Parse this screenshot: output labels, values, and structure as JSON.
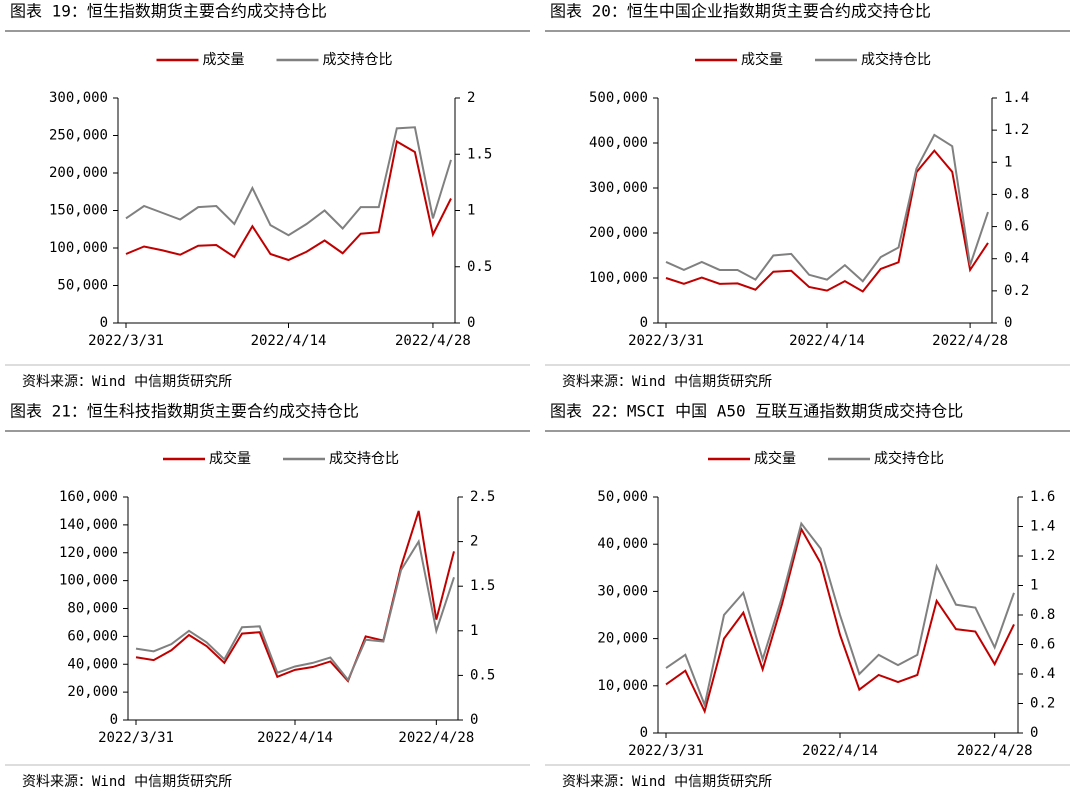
{
  "chart_data": [
    {
      "type": "line",
      "title": "图表 19：恒生指数期货主要合约成交持仓比",
      "source": "资料来源：Wind   中信期货研究所",
      "categories": [
        "2022/3/31",
        null,
        null,
        null,
        null,
        null,
        null,
        null,
        null,
        "2022/4/14",
        null,
        null,
        null,
        null,
        null,
        null,
        null,
        "2022/4/28",
        null
      ],
      "series": [
        {
          "name": "成交量",
          "color": "#c00000",
          "axis": "y",
          "values": [
            92000,
            102000,
            97000,
            91000,
            103000,
            104000,
            88000,
            129000,
            92000,
            84000,
            95000,
            110000,
            93000,
            119000,
            121000,
            242000,
            228000,
            118000,
            166000
          ]
        },
        {
          "name": "成交持仓比",
          "color": "#808080",
          "axis": "y2",
          "values": [
            0.93,
            1.04,
            0.98,
            0.92,
            1.03,
            1.04,
            0.88,
            1.2,
            0.87,
            0.78,
            0.88,
            1.0,
            0.84,
            1.03,
            1.03,
            1.73,
            1.74,
            0.93,
            1.45
          ]
        }
      ],
      "ylim": [
        0,
        300000
      ],
      "yticks": [
        0,
        {
          "value": 50000,
          "label": "50,000"
        },
        {
          "value": 100000,
          "label": "100,000"
        },
        {
          "value": 150000,
          "label": "150,000"
        },
        {
          "value": 200000,
          "label": "200,000"
        },
        {
          "value": 250000,
          "label": "250,000"
        },
        {
          "value": 300000,
          "label": "300,000"
        }
      ],
      "y2lim": [
        0,
        2
      ],
      "y2ticks": [
        0,
        0.5,
        1,
        1.5,
        2
      ]
    },
    {
      "type": "line",
      "title": "图表 20：恒生中国企业指数期货主要合约成交持仓比",
      "source": "资料来源：Wind   中信期货研究所",
      "categories": [
        "2022/3/31",
        null,
        null,
        null,
        null,
        null,
        null,
        null,
        null,
        "2022/4/14",
        null,
        null,
        null,
        null,
        null,
        null,
        null,
        "2022/4/28",
        null
      ],
      "series": [
        {
          "name": "成交量",
          "color": "#c00000",
          "axis": "y",
          "values": [
            100000,
            87000,
            101000,
            87000,
            88000,
            74000,
            114000,
            116000,
            80000,
            72000,
            93000,
            70000,
            120000,
            135000,
            335000,
            383000,
            336000,
            118000,
            178000
          ]
        },
        {
          "name": "成交持仓比",
          "color": "#808080",
          "axis": "y2",
          "values": [
            0.38,
            0.33,
            0.38,
            0.33,
            0.33,
            0.27,
            0.42,
            0.43,
            0.3,
            0.27,
            0.36,
            0.26,
            0.41,
            0.47,
            0.96,
            1.17,
            1.1,
            0.36,
            0.69
          ]
        }
      ],
      "ylim": [
        0,
        500000
      ],
      "yticks": [
        0,
        {
          "value": 100000,
          "label": "100,000"
        },
        {
          "value": 200000,
          "label": "200,000"
        },
        {
          "value": 300000,
          "label": "300,000"
        },
        {
          "value": 400000,
          "label": "400,000"
        },
        {
          "value": 500000,
          "label": "500,000"
        }
      ],
      "y2lim": [
        0,
        1.4
      ],
      "y2ticks": [
        0,
        0.2,
        0.4,
        0.6,
        0.8,
        1,
        1.2,
        1.4
      ]
    },
    {
      "type": "line",
      "title": "图表 21：恒生科技指数期货主要合约成交持仓比",
      "source": "资料来源：Wind   中信期货研究所",
      "categories": [
        "2022/3/31",
        null,
        null,
        null,
        null,
        null,
        null,
        null,
        null,
        "2022/4/14",
        null,
        null,
        null,
        null,
        null,
        null,
        null,
        "2022/4/28",
        null
      ],
      "series": [
        {
          "name": "成交量",
          "color": "#c00000",
          "axis": "y",
          "values": [
            45000,
            43000,
            50000,
            61000,
            53000,
            41000,
            62000,
            63000,
            31000,
            36000,
            38000,
            42000,
            28000,
            60000,
            57000,
            110000,
            150000,
            72000,
            121000
          ]
        },
        {
          "name": "成交持仓比",
          "color": "#808080",
          "axis": "y2",
          "values": [
            0.8,
            0.77,
            0.85,
            1.0,
            0.87,
            0.68,
            1.04,
            1.05,
            0.53,
            0.6,
            0.64,
            0.7,
            0.45,
            0.9,
            0.88,
            1.68,
            2.0,
            1.0,
            1.6
          ]
        }
      ],
      "ylim": [
        0,
        160000
      ],
      "yticks": [
        0,
        {
          "value": 20000,
          "label": "20,000"
        },
        {
          "value": 40000,
          "label": "40,000"
        },
        {
          "value": 60000,
          "label": "60,000"
        },
        {
          "value": 80000,
          "label": "80,000"
        },
        {
          "value": 100000,
          "label": "100,000"
        },
        {
          "value": 120000,
          "label": "120,000"
        },
        {
          "value": 140000,
          "label": "140,000"
        },
        {
          "value": 160000,
          "label": "160,000"
        }
      ],
      "y2lim": [
        0,
        2.5
      ],
      "y2ticks": [
        0,
        0.5,
        1,
        1.5,
        2,
        2.5
      ]
    },
    {
      "type": "line",
      "title": "图表 22：MSCI 中国 A50 互联互通指数期货成交持仓比",
      "source": "资料来源：Wind   中信期货研究所",
      "categories": [
        "2022/3/31",
        null,
        null,
        null,
        null,
        null,
        null,
        null,
        null,
        "2022/4/14",
        null,
        null,
        null,
        null,
        null,
        null,
        null,
        "2022/4/28",
        null
      ],
      "series": [
        {
          "name": "成交量",
          "color": "#c00000",
          "axis": "y",
          "values": [
            10300,
            13200,
            4600,
            20000,
            25500,
            13500,
            27300,
            43200,
            36000,
            20800,
            9200,
            12300,
            10800,
            12300,
            28000,
            22000,
            21500,
            14600,
            23000
          ]
        },
        {
          "name": "成交持仓比",
          "color": "#808080",
          "axis": "y2",
          "values": [
            0.44,
            0.53,
            0.19,
            0.8,
            0.95,
            0.5,
            0.92,
            1.42,
            1.25,
            0.8,
            0.4,
            0.53,
            0.46,
            0.53,
            1.13,
            0.87,
            0.85,
            0.58,
            0.95
          ]
        }
      ],
      "ylim": [
        0,
        50000
      ],
      "yticks": [
        0,
        {
          "value": 10000,
          "label": "10,000"
        },
        {
          "value": 20000,
          "label": "20,000"
        },
        {
          "value": 30000,
          "label": "30,000"
        },
        {
          "value": 40000,
          "label": "40,000"
        },
        {
          "value": 50000,
          "label": "50,000"
        }
      ],
      "y2lim": [
        0,
        1.6
      ],
      "y2ticks": [
        0,
        0.2,
        0.4,
        0.6,
        0.8,
        1,
        1.2,
        1.4,
        1.6
      ]
    }
  ]
}
